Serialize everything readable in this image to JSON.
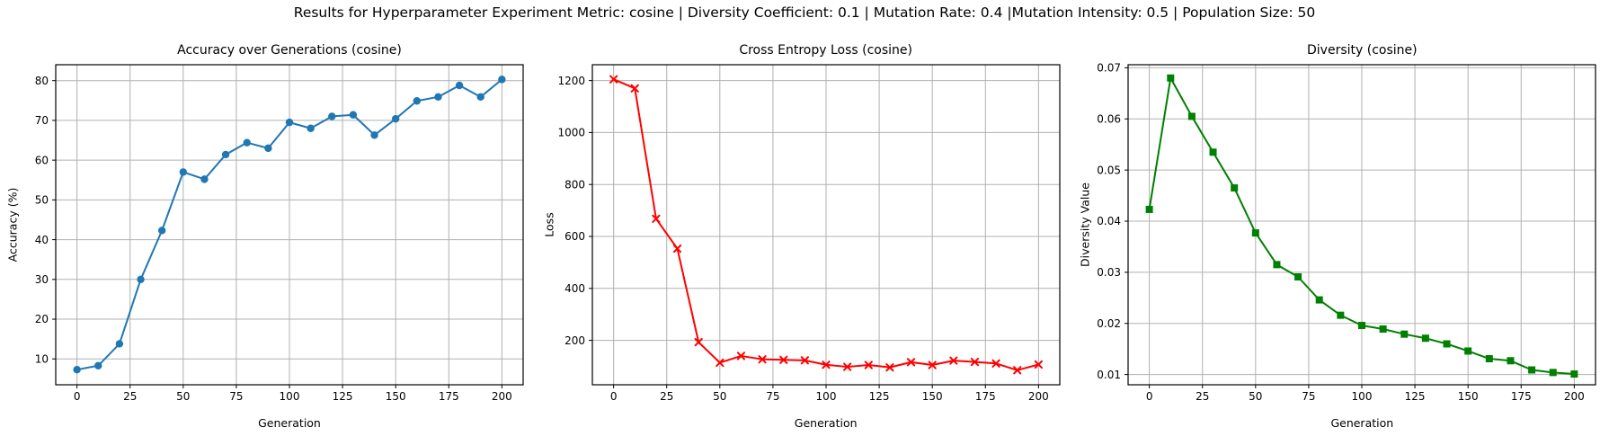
{
  "suptitle": "Results for Hyperparameter Experiment Metric: cosine | Diversity Coefficient: 0.1 | Mutation Rate: 0.4 |Mutation Intensity: 0.5 | Population Size: 50",
  "chart_data": [
    {
      "type": "line",
      "title": "Accuracy over Generations (cosine)",
      "xlabel": "Generation",
      "ylabel": "Accuracy (%)",
      "color": "#1f77b4",
      "marker": "circle",
      "grid": true,
      "x": [
        0,
        10,
        20,
        30,
        40,
        50,
        60,
        70,
        80,
        90,
        100,
        110,
        120,
        130,
        140,
        150,
        160,
        170,
        180,
        190,
        200
      ],
      "y": [
        7.3,
        8.3,
        13.8,
        30.0,
        42.3,
        57.0,
        55.2,
        61.4,
        64.4,
        63.0,
        69.5,
        68.0,
        71.0,
        71.4,
        66.3,
        70.4,
        74.9,
        75.9,
        78.8,
        75.9,
        80.3
      ],
      "xlim": [
        -10,
        210
      ],
      "ylim": [
        3.5,
        84
      ],
      "xticks": [
        0,
        25,
        50,
        75,
        100,
        125,
        150,
        175,
        200
      ],
      "xtick_labels": [
        "0",
        "25",
        "50",
        "75",
        "100",
        "125",
        "150",
        "175",
        "200"
      ],
      "yticks": [
        10,
        20,
        30,
        40,
        50,
        60,
        70,
        80
      ],
      "ytick_labels": [
        "10",
        "20",
        "30",
        "40",
        "50",
        "60",
        "70",
        "80"
      ]
    },
    {
      "type": "line",
      "title": "Cross Entropy Loss (cosine)",
      "xlabel": "Generation",
      "ylabel": "Loss",
      "color": "#ff0000",
      "marker": "x",
      "grid": true,
      "x": [
        0,
        10,
        20,
        30,
        40,
        50,
        60,
        70,
        80,
        90,
        100,
        110,
        120,
        130,
        140,
        150,
        160,
        170,
        180,
        190,
        200
      ],
      "y": [
        1205,
        1170,
        668,
        553,
        193,
        114,
        140,
        127,
        125,
        123,
        106,
        98,
        105,
        96,
        116,
        105,
        122,
        117,
        111,
        85,
        107
      ],
      "xlim": [
        -10,
        210
      ],
      "ylim": [
        29,
        1261
      ],
      "xticks": [
        0,
        25,
        50,
        75,
        100,
        125,
        150,
        175,
        200
      ],
      "xtick_labels": [
        "0",
        "25",
        "50",
        "75",
        "100",
        "125",
        "150",
        "175",
        "200"
      ],
      "yticks": [
        200,
        400,
        600,
        800,
        1000,
        1200
      ],
      "ytick_labels": [
        "200",
        "400",
        "600",
        "800",
        "1000",
        "1200"
      ]
    },
    {
      "type": "line",
      "title": "Diversity (cosine)",
      "xlabel": "Generation",
      "ylabel": "Diversity Value",
      "color": "#008000",
      "marker": "square",
      "grid": true,
      "x": [
        0,
        10,
        20,
        30,
        40,
        50,
        60,
        70,
        80,
        90,
        100,
        110,
        120,
        130,
        140,
        150,
        160,
        170,
        180,
        190,
        200
      ],
      "y": [
        0.0423,
        0.068,
        0.0605,
        0.0535,
        0.0465,
        0.0377,
        0.0315,
        0.0291,
        0.0246,
        0.0216,
        0.0196,
        0.0189,
        0.0179,
        0.0171,
        0.016,
        0.0146,
        0.0131,
        0.0127,
        0.0109,
        0.0104,
        0.0101
      ],
      "xlim": [
        -10,
        210
      ],
      "ylim": [
        0.008,
        0.0706
      ],
      "xticks": [
        0,
        25,
        50,
        75,
        100,
        125,
        150,
        175,
        200
      ],
      "xtick_labels": [
        "0",
        "25",
        "50",
        "75",
        "100",
        "125",
        "150",
        "175",
        "200"
      ],
      "yticks": [
        0.01,
        0.02,
        0.03,
        0.04,
        0.05,
        0.06,
        0.07
      ],
      "ytick_labels": [
        "0.01",
        "0.02",
        "0.03",
        "0.04",
        "0.05",
        "0.06",
        "0.07"
      ]
    }
  ],
  "style": {
    "grid_color": "#b0b0b0",
    "frame_color": "#000000",
    "background": "#ffffff"
  }
}
